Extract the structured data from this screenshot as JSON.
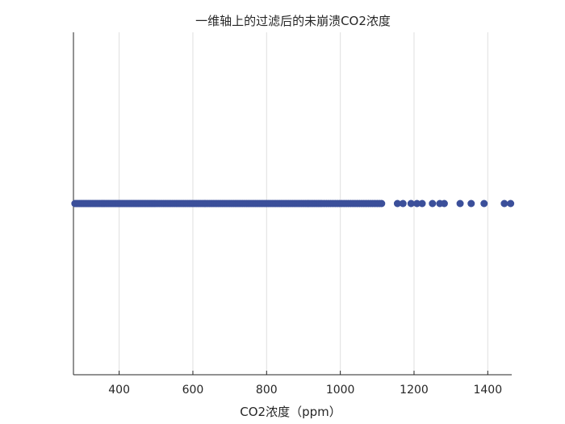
{
  "chart_data": {
    "type": "scatter",
    "title": "一维轴上的过滤后的未崩溃CO2浓度",
    "xlabel": "CO2浓度（ppm）",
    "ylabel": "",
    "xlim": [
      276,
      1465
    ],
    "ylim": [
      -1,
      1
    ],
    "xticks": [
      400,
      600,
      800,
      1000,
      1200,
      1400
    ],
    "xtick_labels": [
      "400",
      "600",
      "800",
      "1000",
      "1200",
      "1400"
    ],
    "grid": "x",
    "legend": "none",
    "marker_color": "#3b4f9a",
    "series": [
      {
        "values_x": [
          280,
          284,
          288,
          292,
          296,
          300,
          304,
          308,
          312,
          316,
          320,
          324,
          328,
          332,
          336,
          340,
          344,
          348,
          352,
          356,
          360,
          364,
          368,
          372,
          376,
          380,
          384,
          388,
          392,
          396,
          400,
          404,
          408,
          412,
          416,
          420,
          424,
          428,
          432,
          436,
          440,
          444,
          448,
          452,
          456,
          460,
          464,
          468,
          472,
          476,
          480,
          484,
          488,
          492,
          496,
          500,
          505,
          510,
          515,
          520,
          525,
          530,
          535,
          540,
          545,
          550,
          555,
          560,
          565,
          570,
          575,
          580,
          585,
          590,
          595,
          600,
          605,
          610,
          615,
          620,
          625,
          630,
          635,
          640,
          645,
          650,
          655,
          660,
          665,
          670,
          675,
          680,
          685,
          690,
          695,
          700,
          705,
          710,
          715,
          720,
          725,
          730,
          735,
          740,
          745,
          750,
          755,
          760,
          765,
          770,
          775,
          780,
          785,
          790,
          795,
          800,
          805,
          810,
          815,
          820,
          825,
          830,
          835,
          840,
          845,
          850,
          855,
          860,
          865,
          870,
          875,
          880,
          885,
          890,
          895,
          900,
          905,
          910,
          915,
          920,
          925,
          930,
          935,
          940,
          945,
          950,
          956,
          962,
          968,
          974,
          980,
          986,
          992,
          998,
          1004,
          1010,
          1016,
          1022,
          1028,
          1034,
          1040,
          1046,
          1052,
          1058,
          1064,
          1070,
          1076,
          1082,
          1088,
          1094,
          1100,
          1106,
          1112,
          1155,
          1170,
          1192,
          1208,
          1222,
          1250,
          1270,
          1282,
          1325,
          1355,
          1390,
          1445,
          1462
        ],
        "values_y": 0
      }
    ]
  }
}
